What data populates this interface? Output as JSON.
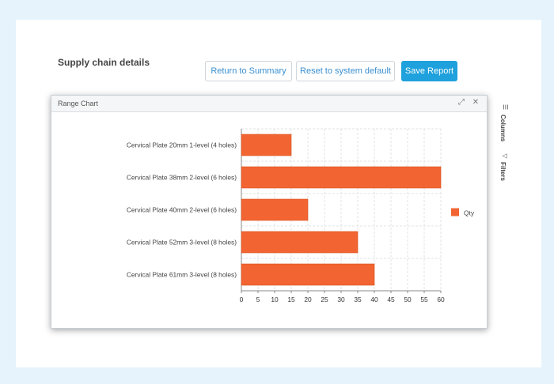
{
  "page": {
    "title": "Supply chain details"
  },
  "toolbar": {
    "return_label": "Return to Summary",
    "reset_label": "Reset to system default",
    "save_label": "Save Report"
  },
  "chart_window": {
    "title": "Range Chart"
  },
  "side_panel": {
    "columns_label": "Columns",
    "filters_label": "Filters"
  },
  "colors": {
    "bar": "#f26532",
    "accent": "#1ea1dc",
    "background": "#e6f3fc"
  },
  "chart_data": {
    "type": "bar",
    "orientation": "horizontal",
    "categories": [
      "Cervical Plate  20mm  1-level (4 holes)",
      "Cervical Plate  38mm  2-level (6 holes)",
      "Cervical Plate  40mm  2-level (6 holes)",
      "Cervical Plate  52mm  3-level (8 holes)",
      "Cervical Plate  61mm  3-level (8 holes)"
    ],
    "series": [
      {
        "name": "Qty",
        "values": [
          15,
          60,
          20,
          35,
          40
        ]
      }
    ],
    "xlim": [
      0,
      60
    ],
    "xticks": [
      0,
      5,
      10,
      15,
      20,
      25,
      30,
      35,
      40,
      45,
      50,
      55,
      60
    ],
    "grid": true,
    "legend_position": "right"
  }
}
